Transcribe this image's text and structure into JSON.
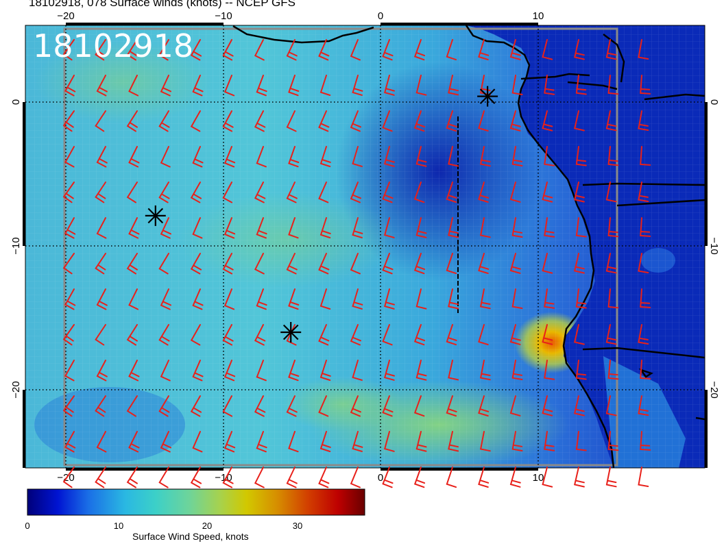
{
  "title": "18102918, 078 Surface winds (knots) -- NCEP GFS",
  "stamp": "18102918",
  "axes": {
    "lon_ticks": [
      "−20",
      "−10",
      "0",
      "10"
    ],
    "lat_ticks": [
      "0",
      "−10",
      "−20"
    ],
    "lon_values": [
      -20,
      -10,
      0,
      10
    ],
    "lat_values": [
      0,
      -10,
      -20
    ]
  },
  "colorbar": {
    "label": "Surface Wind Speed, knots",
    "ticks": [
      "0",
      "10",
      "20",
      "30"
    ],
    "tick_values": [
      0,
      10,
      20,
      30
    ],
    "range": [
      0,
      37
    ],
    "colors": [
      "#00007a",
      "#0014d2",
      "#1a6ee6",
      "#2ab8e2",
      "#3cd0c8",
      "#6ed49a",
      "#a6d24e",
      "#d2c800",
      "#d68e00",
      "#d24000",
      "#be0000",
      "#6a0000"
    ]
  },
  "markers": [
    {
      "name": "star-marker-1",
      "lon": -14.3,
      "lat": -7.9
    },
    {
      "name": "star-marker-2",
      "lon": -5.7,
      "lat": -16.0
    },
    {
      "name": "star-marker-3",
      "lon": 6.8,
      "lat": 0.4
    }
  ],
  "colors": {
    "barb": "#e8201a",
    "coast": "#000000",
    "grid": "#000000",
    "frame": "#808080"
  }
}
